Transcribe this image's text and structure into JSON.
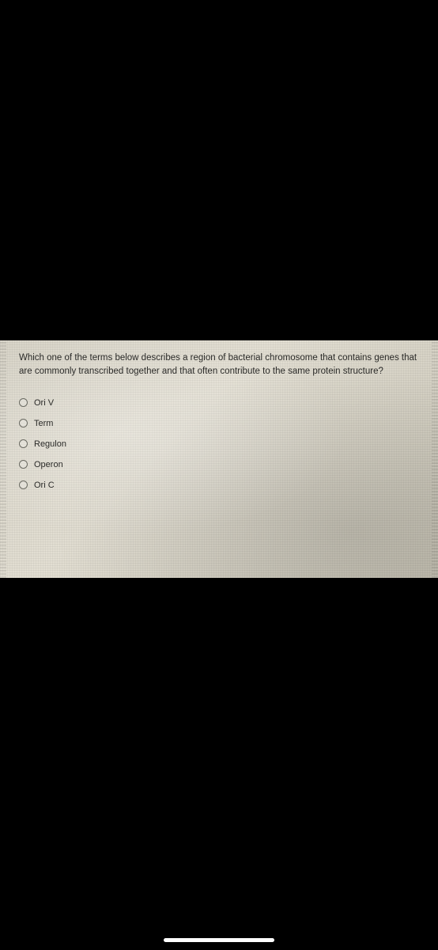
{
  "question": {
    "text": "Which one of the terms below describes a region of bacterial chromosome that contains genes that are commonly transcribed together and that often contribute to the same protein structure?"
  },
  "options": [
    {
      "label": "Ori V"
    },
    {
      "label": "Term"
    },
    {
      "label": "Regulon"
    },
    {
      "label": "Operon"
    },
    {
      "label": "Ori C"
    }
  ],
  "colors": {
    "page_bg": "#000000",
    "band_bg": "#d8d4c8",
    "text": "#2a2a28",
    "radio_border": "#6a6a62",
    "home_indicator": "#ffffff"
  }
}
